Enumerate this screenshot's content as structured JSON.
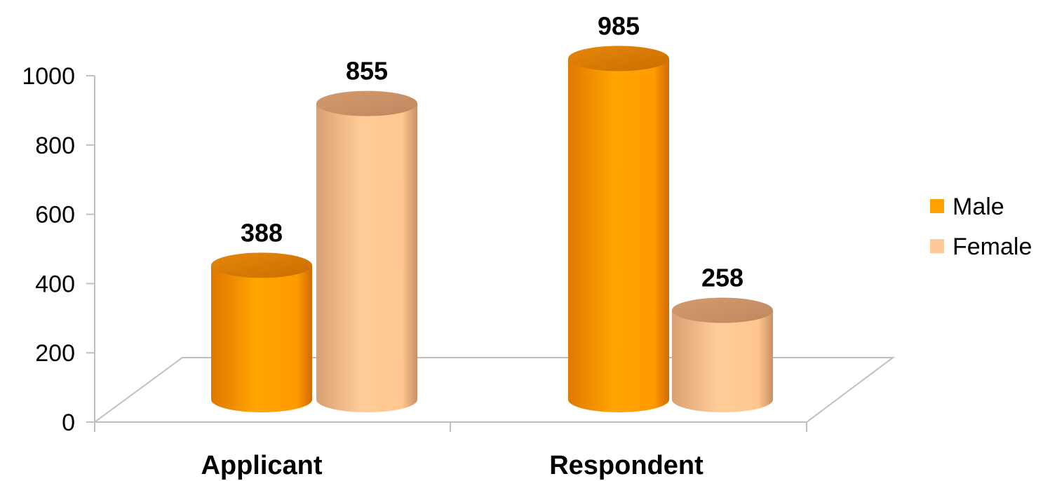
{
  "chart_data": {
    "type": "bar",
    "style": "3d-cylinder",
    "categories": [
      "Applicant",
      "Respondent"
    ],
    "series": [
      {
        "name": "Male",
        "values": [
          388,
          985
        ],
        "color": "#FFA000"
      },
      {
        "name": "Female",
        "values": [
          855,
          258
        ],
        "color": "#FFC896"
      }
    ],
    "yticks": [
      "0",
      "200",
      "400",
      "600",
      "800",
      "1000"
    ],
    "ylim": [
      0,
      1000
    ],
    "title": "",
    "xlabel": "",
    "ylabel": "",
    "grid": false,
    "legend_position": "right",
    "data_labels": true
  }
}
